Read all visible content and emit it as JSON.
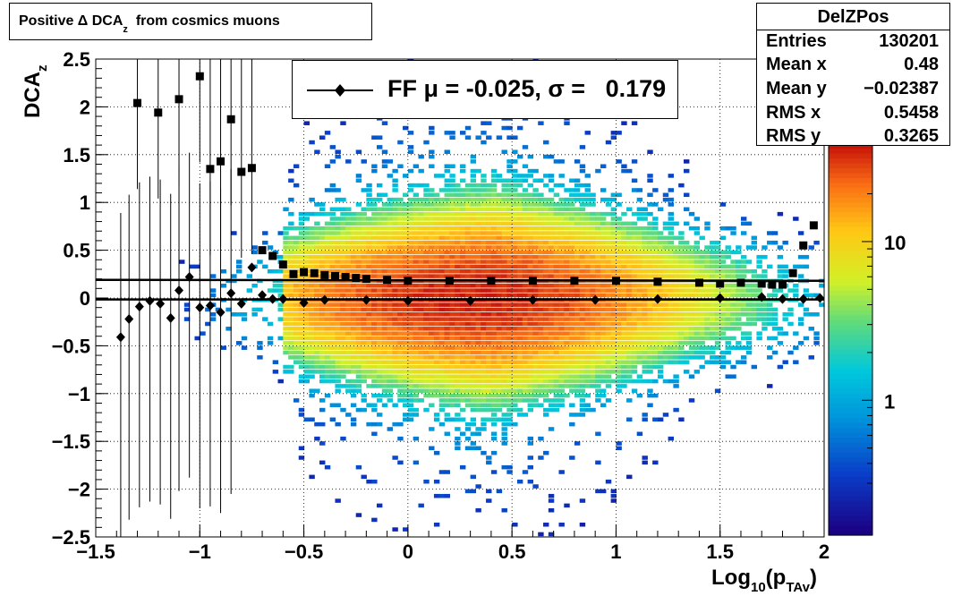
{
  "title": {
    "text": "Positive Δ DCA",
    "sub": "z",
    "tail": "from cosmics muons"
  },
  "stats": {
    "name": "DelZPos",
    "rows": [
      {
        "key": "Entries",
        "value": "130201"
      },
      {
        "key": "Mean x",
        "value": "0.48"
      },
      {
        "key": "Mean y",
        "value": "−0.02387"
      },
      {
        "key": "RMS x",
        "value": "0.5458"
      },
      {
        "key": "RMS y",
        "value": "0.3265"
      }
    ]
  },
  "legend": {
    "label": "FF μ = -0.025, σ =   0.179"
  },
  "colorbar": {
    "labels": [
      {
        "text": "10",
        "value": 10
      },
      {
        "text": "1",
        "value": 1
      }
    ]
  },
  "chart_data": {
    "type": "scatter",
    "subtype": "2D histogram (colz) with profile overlays",
    "xlabel": "Log10(pTAv)",
    "ylabel": "DCAz",
    "xlim": [
      -1.5,
      2
    ],
    "ylim": [
      -2.5,
      2.5
    ],
    "x_ticks": [
      "−1.5",
      "−1",
      "−0.5",
      "0",
      "0.5",
      "1",
      "1.5",
      "2"
    ],
    "y_ticks": [
      "−2.5",
      "−2",
      "−1.5",
      "−1",
      "−0.5",
      "0",
      "0.5",
      "1",
      "1.5",
      "2",
      "2.5"
    ],
    "grid": true,
    "z_scale": "log",
    "series": [
      {
        "marker": "square",
        "x": [
          -1.3,
          -1.2,
          -1.1,
          -1.0,
          -0.95,
          -0.9,
          -0.85,
          -0.8,
          -0.75,
          -0.7,
          -0.65,
          -0.6,
          -0.55,
          -0.5,
          -0.45,
          -0.4,
          -0.35,
          -0.3,
          -0.25,
          -0.2,
          -0.1,
          0.0,
          0.2,
          0.4,
          0.6,
          0.8,
          1.0,
          1.2,
          1.4,
          1.5,
          1.6,
          1.7,
          1.75,
          1.8,
          1.85,
          1.9,
          1.95
        ],
        "y": [
          2.04,
          1.94,
          2.08,
          2.32,
          1.35,
          1.43,
          1.87,
          1.32,
          1.36,
          0.5,
          0.44,
          0.35,
          0.25,
          0.27,
          0.26,
          0.24,
          0.23,
          0.22,
          0.21,
          0.2,
          0.19,
          0.18,
          0.18,
          0.18,
          0.18,
          0.18,
          0.18,
          0.17,
          0.16,
          0.15,
          0.16,
          0.15,
          0.14,
          0.14,
          0.26,
          0.55,
          0.76
        ]
      },
      {
        "marker": "diamond",
        "x": [
          -1.38,
          -1.34,
          -1.29,
          -1.24,
          -1.19,
          -1.14,
          -1.1,
          -1.05,
          -1.0,
          -0.95,
          -0.9,
          -0.85,
          -0.8,
          -0.75,
          -0.7,
          -0.65,
          -0.6,
          -0.5,
          -0.4,
          -0.2,
          0.0,
          0.3,
          0.6,
          0.9,
          1.2,
          1.5,
          1.7,
          1.8,
          1.9,
          1.98
        ],
        "y": [
          -0.41,
          -0.22,
          -0.09,
          -0.03,
          -0.06,
          -0.21,
          0.08,
          0.22,
          -0.1,
          -0.08,
          -0.15,
          0.05,
          -0.06,
          0.32,
          0.03,
          -0.01,
          -0.01,
          -0.05,
          -0.02,
          -0.02,
          -0.03,
          -0.03,
          -0.02,
          -0.02,
          -0.01,
          0.0,
          0.01,
          -0.01,
          -0.01,
          0.0
        ]
      }
    ],
    "fit_lines": [
      {
        "y_start": 0.19,
        "y_end": 0.18
      },
      {
        "y_start": -0.015,
        "y_end": -0.015
      }
    ]
  }
}
